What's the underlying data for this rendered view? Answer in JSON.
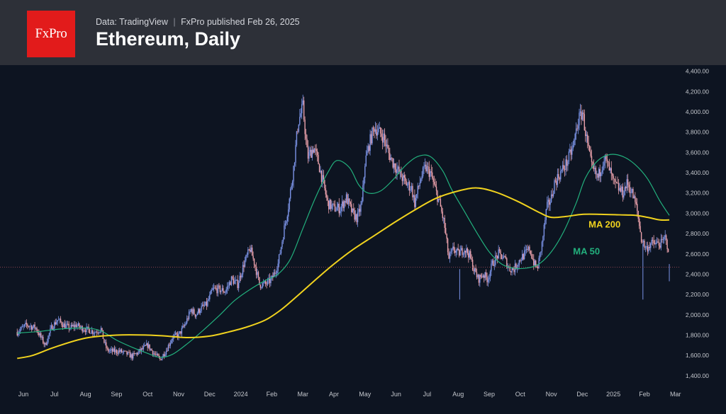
{
  "header": {
    "logo_text": "FxPro",
    "source_data": "Data: TradingView",
    "source_separator": "|",
    "source_published": "FxPro published Feb 26, 2025",
    "title": "Ethereum, Daily"
  },
  "colors": {
    "background": "#0d1421",
    "header": "#2d3038",
    "logo": "#e21b1b",
    "candle_up": "#7b93e6",
    "candle_down": "#e9a0aa",
    "ma200": "#f0d21e",
    "ma50": "#22b07d",
    "last_price_line": "#b0505a",
    "axis_text": "#c3c6cc"
  },
  "chart_data": {
    "type": "candlestick",
    "title": "Ethereum, Daily",
    "ylim": [
      1350,
      4450
    ],
    "y_ticks": [
      "4,400.00",
      "4,200.00",
      "4,000.00",
      "3,800.00",
      "3,600.00",
      "3,400.00",
      "3,200.00",
      "3,000.00",
      "2,800.00",
      "2,600.00",
      "2,400.00",
      "2,200.00",
      "2,000.00",
      "1,800.00",
      "1,600.00",
      "1,400.00"
    ],
    "x_ticks": [
      "Jun",
      "Jul",
      "Aug",
      "Sep",
      "Oct",
      "Nov",
      "Dec",
      "2024",
      "Feb",
      "Mar",
      "Apr",
      "May",
      "Jun",
      "Jul",
      "Aug",
      "Sep",
      "Oct",
      "Nov",
      "Dec",
      "2025",
      "Feb",
      "Mar"
    ],
    "x_tick_months": [
      0,
      1,
      2,
      3,
      4,
      5,
      6,
      7,
      8,
      9,
      10,
      11,
      12,
      13,
      14,
      15,
      16,
      17,
      18,
      19,
      20,
      21
    ],
    "x_start": "2023-05-25",
    "price_path": [
      [
        -0.2,
        1830
      ],
      [
        0.1,
        1900
      ],
      [
        0.4,
        1870
      ],
      [
        0.7,
        1700
      ],
      [
        0.9,
        1870
      ],
      [
        1.1,
        1950
      ],
      [
        1.3,
        1900
      ],
      [
        1.5,
        1870
      ],
      [
        1.7,
        1900
      ],
      [
        1.85,
        1870
      ],
      [
        2.1,
        1850
      ],
      [
        2.3,
        1830
      ],
      [
        2.5,
        1860
      ],
      [
        2.6,
        1730
      ],
      [
        2.7,
        1650
      ],
      [
        2.85,
        1640
      ],
      [
        3.1,
        1640
      ],
      [
        3.3,
        1620
      ],
      [
        3.5,
        1590
      ],
      [
        3.7,
        1630
      ],
      [
        4.0,
        1700
      ],
      [
        4.2,
        1620
      ],
      [
        4.4,
        1560
      ],
      [
        4.6,
        1650
      ],
      [
        4.8,
        1780
      ],
      [
        5.0,
        1800
      ],
      [
        5.2,
        1900
      ],
      [
        5.4,
        2050
      ],
      [
        5.55,
        2000
      ],
      [
        5.7,
        2060
      ],
      [
        5.9,
        2100
      ],
      [
        6.1,
        2250
      ],
      [
        6.3,
        2250
      ],
      [
        6.5,
        2230
      ],
      [
        6.7,
        2350
      ],
      [
        6.9,
        2300
      ],
      [
        7.1,
        2500
      ],
      [
        7.3,
        2650
      ],
      [
        7.45,
        2500
      ],
      [
        7.6,
        2300
      ],
      [
        7.8,
        2300
      ],
      [
        8.0,
        2350
      ],
      [
        8.2,
        2500
      ],
      [
        8.4,
        2850
      ],
      [
        8.55,
        3100
      ],
      [
        8.7,
        3450
      ],
      [
        8.85,
        3900
      ],
      [
        9.0,
        4050
      ],
      [
        9.15,
        3550
      ],
      [
        9.35,
        3650
      ],
      [
        9.5,
        3500
      ],
      [
        9.65,
        3300
      ],
      [
        9.8,
        3100
      ],
      [
        10.0,
        3050
      ],
      [
        10.2,
        3050
      ],
      [
        10.4,
        3150
      ],
      [
        10.6,
        3000
      ],
      [
        10.75,
        2950
      ],
      [
        10.9,
        3100
      ],
      [
        11.0,
        3500
      ],
      [
        11.15,
        3700
      ],
      [
        11.3,
        3850
      ],
      [
        11.45,
        3800
      ],
      [
        11.6,
        3750
      ],
      [
        11.75,
        3600
      ],
      [
        11.9,
        3500
      ],
      [
        12.1,
        3400
      ],
      [
        12.3,
        3300
      ],
      [
        12.5,
        3250
      ],
      [
        12.6,
        3100
      ],
      [
        12.8,
        3350
      ],
      [
        12.95,
        3450
      ],
      [
        13.1,
        3400
      ],
      [
        13.25,
        3250
      ],
      [
        13.4,
        3100
      ],
      [
        13.55,
        2900
      ],
      [
        13.7,
        2550
      ],
      [
        13.85,
        2650
      ],
      [
        14.0,
        2600
      ],
      [
        14.2,
        2650
      ],
      [
        14.35,
        2600
      ],
      [
        14.5,
        2450
      ],
      [
        14.65,
        2350
      ],
      [
        14.8,
        2400
      ],
      [
        14.95,
        2350
      ],
      [
        15.1,
        2500
      ],
      [
        15.3,
        2600
      ],
      [
        15.5,
        2550
      ],
      [
        15.65,
        2450
      ],
      [
        15.8,
        2450
      ],
      [
        16.0,
        2550
      ],
      [
        16.15,
        2600
      ],
      [
        16.3,
        2650
      ],
      [
        16.45,
        2500
      ],
      [
        16.55,
        2450
      ],
      [
        16.7,
        2700
      ],
      [
        16.85,
        3050
      ],
      [
        17.0,
        3150
      ],
      [
        17.1,
        3300
      ],
      [
        17.3,
        3400
      ],
      [
        17.5,
        3500
      ],
      [
        17.7,
        3650
      ],
      [
        17.85,
        3900
      ],
      [
        18.0,
        4000
      ],
      [
        18.15,
        3700
      ],
      [
        18.3,
        3450
      ],
      [
        18.5,
        3350
      ],
      [
        18.7,
        3550
      ],
      [
        18.85,
        3450
      ],
      [
        19.0,
        3300
      ],
      [
        19.15,
        3250
      ],
      [
        19.3,
        3200
      ],
      [
        19.45,
        3300
      ],
      [
        19.6,
        3200
      ],
      [
        19.75,
        3050
      ],
      [
        19.9,
        2750
      ],
      [
        20.05,
        2650
      ],
      [
        20.2,
        2700
      ],
      [
        20.4,
        2700
      ],
      [
        20.55,
        2700
      ],
      [
        20.7,
        2780
      ],
      [
        20.8,
        2480
      ]
    ],
    "ma200": {
      "name": "MA 200",
      "points": [
        [
          -0.2,
          1570
        ],
        [
          0.3,
          1600
        ],
        [
          1.0,
          1680
        ],
        [
          2.0,
          1770
        ],
        [
          3.0,
          1800
        ],
        [
          4.0,
          1800
        ],
        [
          4.6,
          1790
        ],
        [
          5.3,
          1775
        ],
        [
          6.0,
          1790
        ],
        [
          6.6,
          1830
        ],
        [
          7.2,
          1880
        ],
        [
          7.8,
          1950
        ],
        [
          8.3,
          2050
        ],
        [
          8.8,
          2180
        ],
        [
          9.5,
          2370
        ],
        [
          10.0,
          2500
        ],
        [
          10.6,
          2640
        ],
        [
          11.3,
          2780
        ],
        [
          12.0,
          2920
        ],
        [
          12.7,
          3050
        ],
        [
          13.3,
          3150
        ],
        [
          14.0,
          3220
        ],
        [
          14.6,
          3250
        ],
        [
          15.2,
          3210
        ],
        [
          15.9,
          3120
        ],
        [
          16.6,
          3010
        ],
        [
          17.0,
          2960
        ],
        [
          17.5,
          2970
        ],
        [
          18.0,
          2990
        ],
        [
          18.6,
          2990
        ],
        [
          19.2,
          2985
        ],
        [
          19.7,
          2980
        ],
        [
          20.1,
          2960
        ],
        [
          20.5,
          2935
        ],
        [
          20.8,
          2935
        ]
      ]
    },
    "ma50": {
      "name": "MA 50",
      "points": [
        [
          -0.2,
          1820
        ],
        [
          0.5,
          1835
        ],
        [
          1.2,
          1860
        ],
        [
          2.0,
          1870
        ],
        [
          2.5,
          1840
        ],
        [
          3.0,
          1750
        ],
        [
          3.5,
          1680
        ],
        [
          4.0,
          1620
        ],
        [
          4.4,
          1580
        ],
        [
          4.8,
          1610
        ],
        [
          5.3,
          1720
        ],
        [
          5.8,
          1850
        ],
        [
          6.3,
          1990
        ],
        [
          6.8,
          2140
        ],
        [
          7.3,
          2250
        ],
        [
          7.8,
          2340
        ],
        [
          8.2,
          2400
        ],
        [
          8.6,
          2550
        ],
        [
          9.0,
          2850
        ],
        [
          9.4,
          3150
        ],
        [
          9.8,
          3400
        ],
        [
          10.1,
          3520
        ],
        [
          10.5,
          3450
        ],
        [
          10.8,
          3280
        ],
        [
          11.1,
          3200
        ],
        [
          11.5,
          3220
        ],
        [
          11.9,
          3330
        ],
        [
          12.3,
          3470
        ],
        [
          12.7,
          3560
        ],
        [
          13.1,
          3560
        ],
        [
          13.5,
          3420
        ],
        [
          13.8,
          3230
        ],
        [
          14.2,
          3020
        ],
        [
          14.6,
          2810
        ],
        [
          15.0,
          2620
        ],
        [
          15.4,
          2500
        ],
        [
          15.8,
          2460
        ],
        [
          16.2,
          2460
        ],
        [
          16.6,
          2500
        ],
        [
          17.0,
          2620
        ],
        [
          17.4,
          2820
        ],
        [
          17.8,
          3100
        ],
        [
          18.1,
          3350
        ],
        [
          18.5,
          3520
        ],
        [
          18.9,
          3580
        ],
        [
          19.3,
          3560
        ],
        [
          19.7,
          3480
        ],
        [
          20.1,
          3340
        ],
        [
          20.5,
          3120
        ],
        [
          20.8,
          2980
        ]
      ]
    },
    "last_price": 2470,
    "annotations": [
      {
        "text": "MA 200",
        "x": 18.2,
        "y": 2860
      },
      {
        "text": "MA 50",
        "x": 17.7,
        "y": 2595
      }
    ]
  }
}
